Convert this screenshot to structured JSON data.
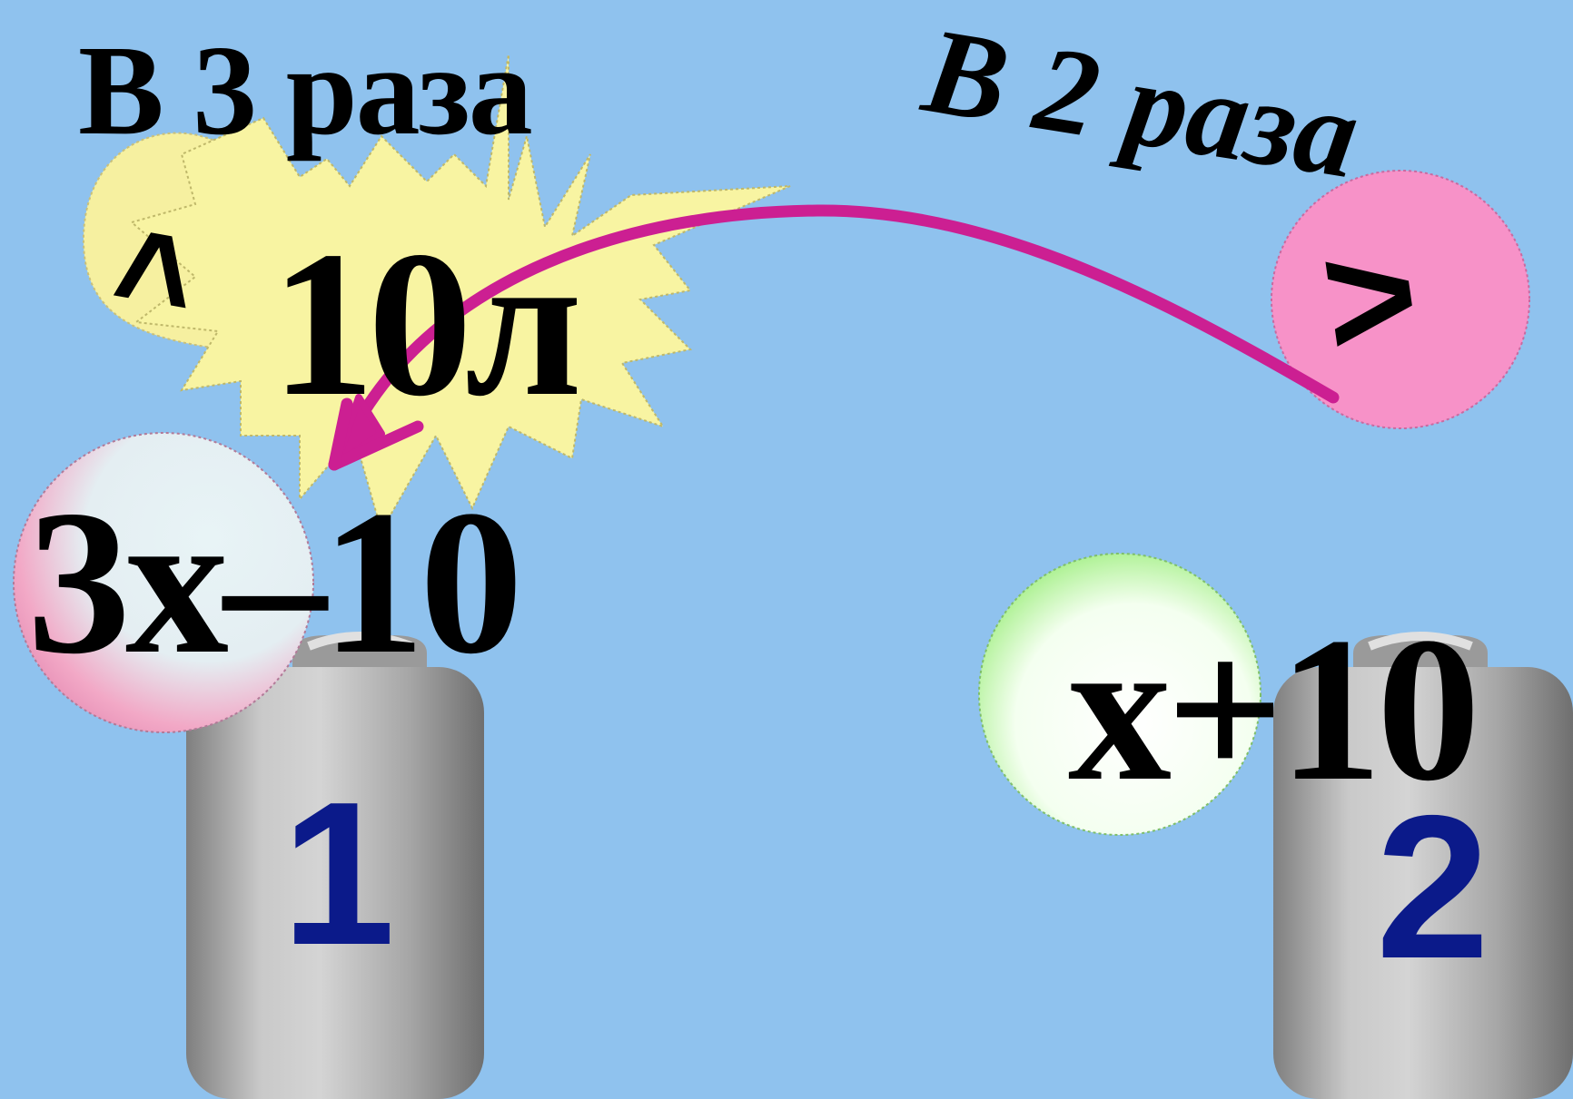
{
  "slide": {
    "label_times3": "В 3 раза",
    "label_times2": "В 2 раза",
    "star_amount": "10л",
    "sign_left": ">",
    "sign_right": ">",
    "expr_can1": "3х–10",
    "expr_can2": "х+10",
    "can1_number": "1",
    "can2_number": "2"
  },
  "colors": {
    "background": "#8fc2ee",
    "star_fill": "#f8f4a2",
    "heart_fill": "#f6f0a0",
    "arrow": "#cc1f92",
    "right_bubble": "#f792c8",
    "can_body": "#a9a9a9",
    "can_number": "#0b1a8a"
  }
}
